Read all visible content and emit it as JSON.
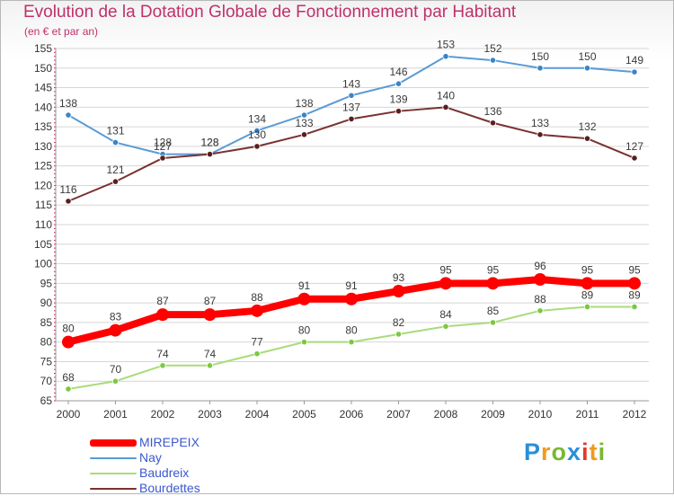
{
  "title": "Evolution de la Dotation Globale de Fonctionnement par Habitant",
  "subtitle": "(en € et par an)",
  "brand": {
    "letters": [
      {
        "ch": "P",
        "color": "#2a8fd8"
      },
      {
        "ch": "r",
        "color": "#f09a1e"
      },
      {
        "ch": "o",
        "color": "#79b830"
      },
      {
        "ch": "x",
        "color": "#2a8fd8"
      },
      {
        "ch": "i",
        "color": "#e23a2a"
      },
      {
        "ch": "t",
        "color": "#f09a1e"
      },
      {
        "ch": "i",
        "color": "#79b830"
      }
    ]
  },
  "chart_data": {
    "type": "line",
    "title": "Evolution de la Dotation Globale de Fonctionnement par Habitant",
    "subtitle": "(en € et par an)",
    "x": [
      2000,
      2001,
      2002,
      2003,
      2004,
      2005,
      2006,
      2007,
      2008,
      2009,
      2010,
      2011,
      2012
    ],
    "x_tick_labels": [
      "2000",
      "2001",
      "2002",
      "2003",
      "2004",
      "2005",
      "2006",
      "2007",
      "2008",
      "2009",
      "2010",
      "2011",
      "2012"
    ],
    "ylim": [
      65,
      155
    ],
    "y_ticks": [
      65,
      70,
      75,
      80,
      85,
      90,
      95,
      100,
      105,
      110,
      115,
      120,
      125,
      130,
      135,
      140,
      145,
      150,
      155
    ],
    "grid": "horizontal",
    "legend_position": "bottom-left",
    "series": [
      {
        "name": "Nay",
        "color": "#5a9bd5",
        "marker": "#3a84c8",
        "values": [
          138,
          131,
          128,
          128,
          134,
          138,
          143,
          146,
          153,
          152,
          150,
          150,
          149
        ]
      },
      {
        "name": "Bourdettes",
        "color": "#7a3232",
        "marker": "#5a1e1e",
        "values": [
          116,
          121,
          127,
          128,
          130,
          133,
          137,
          139,
          140,
          136,
          133,
          132,
          127
        ]
      },
      {
        "name": "Baudreix",
        "color": "#a8dc7a",
        "marker": "#7cc840",
        "values": [
          68,
          70,
          74,
          74,
          77,
          80,
          80,
          82,
          84,
          85,
          88,
          89,
          89
        ]
      },
      {
        "name": "MIREPEIX",
        "color": "#ff0000",
        "marker": "#ff0000",
        "values": [
          80,
          83,
          87,
          87,
          88,
          91,
          91,
          93,
          95,
          95,
          96,
          95,
          95
        ],
        "emphasis": true
      }
    ],
    "legend_order": [
      "MIREPEIX",
      "Nay",
      "Baudreix",
      "Bourdettes"
    ]
  }
}
